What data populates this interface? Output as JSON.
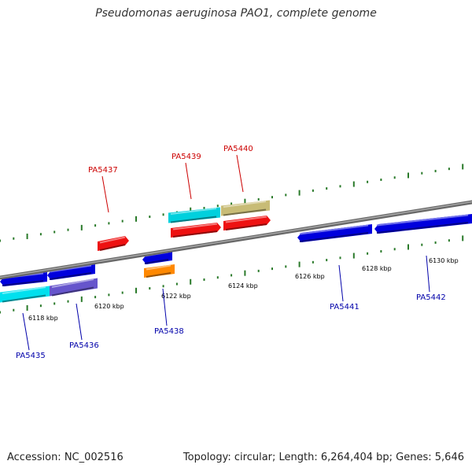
{
  "title": "Pseudomonas aeruginosa PAO1, complete genome",
  "footer": {
    "accession": "Accession: NC_002516",
    "summary": "Topology: circular; Length: 6,264,404 bp; Genes: 5,646"
  },
  "colors": {
    "backbone": "#8a8a8a",
    "forward_label": "#cc0000",
    "reverse_label": "#0000aa",
    "tick": "#2a7a2a"
  },
  "tick_labels": [
    "6118 kbp",
    "6120 kbp",
    "6122 kbp",
    "6124 kbp",
    "6126 kbp",
    "6128 kbp",
    "6130 kbp"
  ],
  "genes": [
    {
      "label": "PA5435",
      "strand": "reverse",
      "color": "#0000dd"
    },
    {
      "label": "PA5436",
      "strand": "reverse",
      "color": "#0000dd"
    },
    {
      "label": "PA5437",
      "strand": "forward",
      "color": "#ee1111"
    },
    {
      "label": "PA5438",
      "strand": "reverse",
      "color": "#0000dd"
    },
    {
      "label": "PA5439",
      "strand": "forward",
      "color": "#ee1111"
    },
    {
      "label": "PA5440",
      "strand": "forward",
      "color": "#ee1111"
    },
    {
      "label": "PA5441",
      "strand": "reverse",
      "color": "#0000dd"
    },
    {
      "label": "PA5442",
      "strand": "reverse",
      "color": "#0000dd"
    }
  ]
}
